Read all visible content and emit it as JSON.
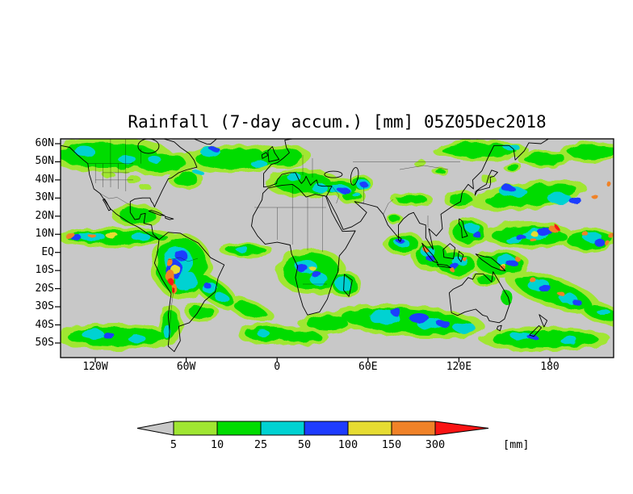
{
  "title": "Rainfall (7-day accum.) [mm] 05Z05Dec2018",
  "map": {
    "y_ticks": [
      "60N",
      "50N",
      "40N",
      "30N",
      "20N",
      "10N",
      "EQ",
      "10S",
      "20S",
      "30S",
      "40S",
      "50S"
    ],
    "x_ticks": [
      "120W",
      "60W",
      "0",
      "60E",
      "120E",
      "180"
    ]
  },
  "colorbar": {
    "levels": [
      "5",
      "10",
      "25",
      "50",
      "100",
      "150",
      "300"
    ],
    "unit_label": "[mm]",
    "colors": {
      "below": "#c8c8c8",
      "segments": [
        "#a0e632",
        "#00dc00",
        "#00d2d2",
        "#1e3cff",
        "#e6dc32",
        "#f08228"
      ],
      "above": "#fa1414"
    }
  },
  "chart_data": {
    "type": "heatmap",
    "subtype": "filled-contour world map (lat/lon projection)",
    "title": "Rainfall (7-day accum.) [mm] 05Z05Dec2018",
    "variable": "7-day accumulated rainfall",
    "unit": "mm",
    "valid_time": "05Z05Dec2018",
    "lat_tick_labels": [
      "60N",
      "50N",
      "40N",
      "30N",
      "20N",
      "10N",
      "EQ",
      "10S",
      "20S",
      "30S",
      "40S",
      "50S"
    ],
    "lon_tick_labels": [
      "120W",
      "60W",
      "0",
      "60E",
      "120E",
      "180"
    ],
    "levels_mm": [
      5,
      10,
      25,
      50,
      100,
      150,
      300
    ],
    "palette": [
      {
        "range": "< 5",
        "color": "#c8c8c8"
      },
      {
        "range": "5 - 10",
        "color": "#a0e632"
      },
      {
        "range": "10 - 25",
        "color": "#00dc00"
      },
      {
        "range": "25 - 50",
        "color": "#00d2d2"
      },
      {
        "range": "50 - 100",
        "color": "#1e3cff"
      },
      {
        "range": "100 - 150",
        "color": "#e6dc32"
      },
      {
        "range": "150 - 300",
        "color": "#f08228"
      },
      {
        "range": "> 300",
        "color": "#fa1414"
      }
    ],
    "legend_position": "bottom",
    "grid": "off",
    "notes": "Gray areas indicate accumulations below 5 mm; heaviest totals (orange/red) along the ITCZ, over NW South America, the Maritime Continent, the West Pacific and SPCZ."
  }
}
